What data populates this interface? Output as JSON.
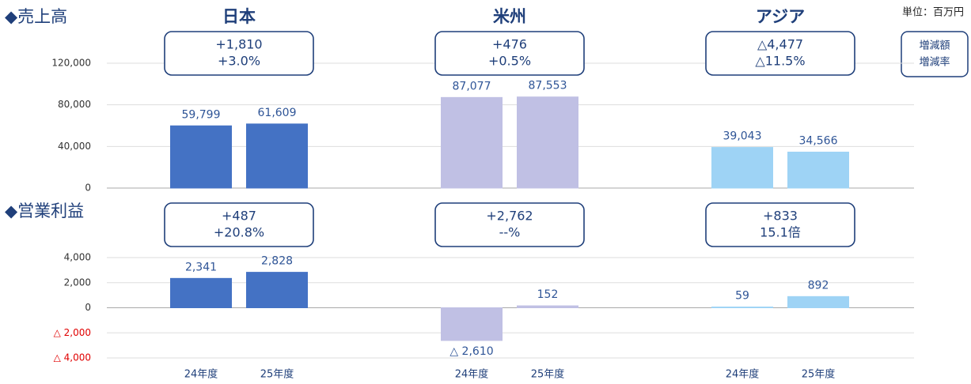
{
  "unit": "単位：百万円",
  "legend_note": [
    "増減額",
    "増減率"
  ],
  "chart_data": [
    {
      "type": "bar",
      "title": "◆売上高",
      "series": [
        {
          "name": "日本",
          "color": "#4472c4",
          "values": [
            59799,
            61609
          ],
          "value_labels": [
            "59,799",
            "61,609"
          ],
          "change": [
            "+1,810",
            "+3.0%"
          ]
        },
        {
          "name": "米州",
          "color": "#c0c0e4",
          "values": [
            87077,
            87553
          ],
          "value_labels": [
            "87,077",
            "87,553"
          ],
          "change": [
            "+476",
            "+0.5%"
          ]
        },
        {
          "name": "アジア",
          "color": "#9ed3f5",
          "values": [
            39043,
            34566
          ],
          "value_labels": [
            "39,043",
            "34,566"
          ],
          "change": [
            "△4,477",
            "△11.5%"
          ]
        }
      ],
      "ylim": [
        0,
        120000
      ],
      "yticks": [
        0,
        {
          "value": 40000,
          "label": "40,000"
        },
        {
          "value": 80000,
          "label": "80,000"
        },
        {
          "value": 120000,
          "label": "120,000"
        }
      ],
      "grid": true
    },
    {
      "type": "bar",
      "title": "◆営業利益",
      "categories": [
        "24年度",
        "25年度"
      ],
      "series": [
        {
          "color": "#4472c4",
          "values": [
            2341,
            2828
          ],
          "value_labels": [
            "2,341",
            "2,828"
          ],
          "change": [
            "+487",
            "+20.8%"
          ]
        },
        {
          "color": "#c0c0e4",
          "values": [
            -2610,
            152
          ],
          "value_labels": [
            "△ 2,610",
            "152"
          ],
          "change": [
            "+2,762",
            "--%"
          ]
        },
        {
          "color": "#9ed3f5",
          "values": [
            59,
            892
          ],
          "value_labels": [
            "59",
            "892"
          ],
          "change": [
            "+833",
            "15.1倍"
          ]
        }
      ],
      "ylim": [
        -4000,
        4000
      ],
      "yticks": [
        {
          "value": -4000,
          "label": "△ 4,000"
        },
        {
          "value": -2000,
          "label": "△ 2,000"
        },
        0,
        {
          "value": 2000,
          "label": "2,000"
        },
        {
          "value": 4000,
          "label": "4,000"
        }
      ],
      "negative_tick_color": "#e00000",
      "grid": true
    }
  ]
}
